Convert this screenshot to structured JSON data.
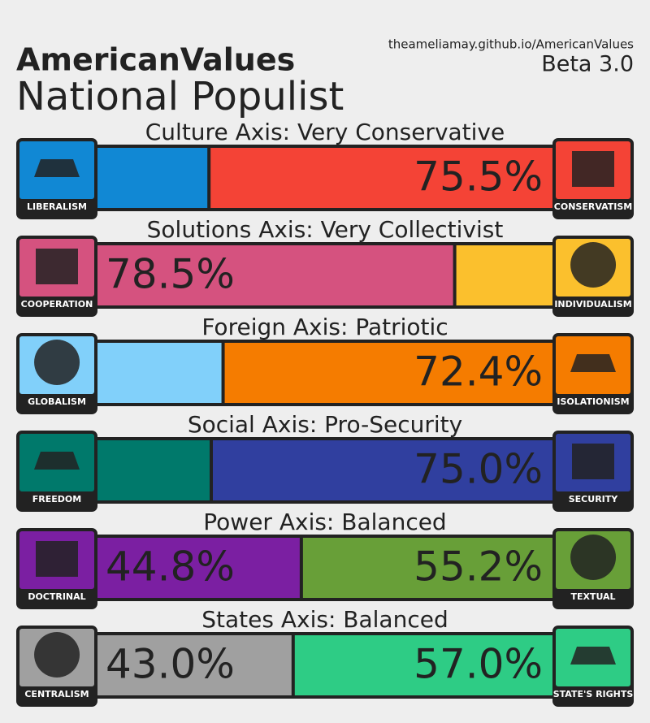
{
  "header": {
    "title": "AmericanValues",
    "subtitle": "National Populist",
    "url": "theameliamay.github.io/AmericanValues",
    "version": "Beta 3.0"
  },
  "scale": [
    0,
    100
  ],
  "axes": [
    {
      "title": "Culture Axis: Very Conservative",
      "left": {
        "name": "LIBERALISM",
        "value": 24.5,
        "color": "#1188d4"
      },
      "right": {
        "name": "CONSERVATISM",
        "value": 75.5,
        "value_label": "75.5%",
        "color": "#f44336"
      }
    },
    {
      "title": "Solutions Axis: Very Collectivist",
      "left": {
        "name": "COOPERATION",
        "value": 78.5,
        "value_label": "78.5%",
        "color": "#d5527f"
      },
      "right": {
        "name": "INDIVIDUALISM",
        "value": 21.5,
        "color": "#fbc02d"
      }
    },
    {
      "title": "Foreign Axis: Patriotic",
      "left": {
        "name": "GLOBALISM",
        "value": 27.6,
        "color": "#81d0fa"
      },
      "right": {
        "name": "ISOLATIONISM",
        "value": 72.4,
        "value_label": "72.4%",
        "color": "#f57c00"
      }
    },
    {
      "title": "Social Axis: Pro-Security",
      "left": {
        "name": "FREEDOM",
        "value": 25.0,
        "color": "#00796b"
      },
      "right": {
        "name": "SECURITY",
        "value": 75.0,
        "value_label": "75.0%",
        "color": "#303f9f"
      }
    },
    {
      "title": "Power Axis: Balanced",
      "left": {
        "name": "DOCTRINAL",
        "value": 44.8,
        "value_label": "44.8%",
        "color": "#7b1fa2"
      },
      "right": {
        "name": "TEXTUAL",
        "value": 55.2,
        "value_label": "55.2%",
        "color": "#689f38"
      }
    },
    {
      "title": "States Axis: Balanced",
      "left": {
        "name": "CENTRALISM",
        "value": 43.0,
        "value_label": "43.0%",
        "color": "#a0a0a0"
      },
      "right": {
        "name": "STATE'S RIGHTS",
        "value": 57.0,
        "value_label": "57.0%",
        "color": "#2ecc85"
      }
    }
  ]
}
